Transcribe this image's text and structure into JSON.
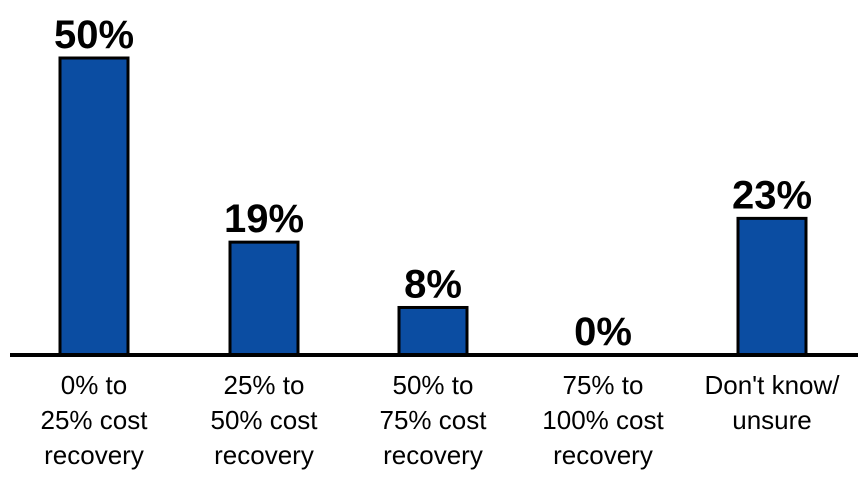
{
  "chart_data": {
    "type": "bar",
    "categories": [
      [
        "0% to",
        "25% cost",
        "recovery"
      ],
      [
        "25% to",
        "50% cost",
        "recovery"
      ],
      [
        "50% to",
        "75% cost",
        "recovery"
      ],
      [
        "75% to",
        "100% cost",
        "recovery"
      ],
      [
        "Don't know/",
        "unsure"
      ]
    ],
    "values": [
      50,
      19,
      8,
      0,
      23
    ],
    "value_labels": [
      "50%",
      "19%",
      "8%",
      "0%",
      "23%"
    ],
    "ylim": [
      0,
      50
    ],
    "grid": false,
    "bar_color": "#0B4DA2"
  }
}
